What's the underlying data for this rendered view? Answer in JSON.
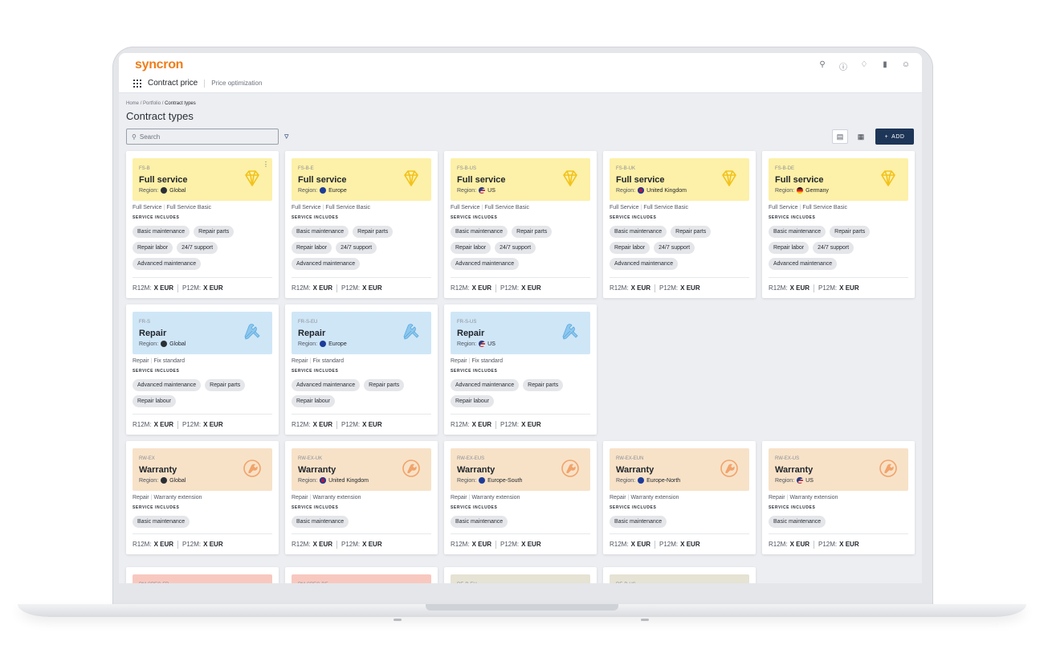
{
  "app": {
    "logo": "syncron",
    "nav_main": "Contract price",
    "nav_sub": "Price optimization",
    "icons": [
      "search-icon",
      "help-icon",
      "bell-icon",
      "analytics-icon",
      "user-icon"
    ]
  },
  "breadcrumb": {
    "home": "Home",
    "sep1": "/",
    "portfolio": "Portfolio",
    "sep2": "/",
    "current": "Contract types"
  },
  "page_title": "Contract types",
  "search": {
    "placeholder": "Search"
  },
  "toolbar": {
    "add_label": "ADD"
  },
  "labels": {
    "service_includes": "SERVICE INCLUDES",
    "region": "Region:",
    "r12m": "R12M:",
    "p12m": "P12M:"
  },
  "cards": [
    {
      "code": "FS-B",
      "title": "Full service",
      "region": "Global",
      "tag1": "Full Service",
      "tag2": "Full Service Basic",
      "chips": [
        "Basic maintenance",
        "Repair parts",
        "Repair labor",
        "24/7 support",
        "Advanced maintenance"
      ],
      "r12m": "X EUR",
      "p12m": "X EUR"
    },
    {
      "code": "FS-B-E",
      "title": "Full service",
      "region": "Europe",
      "tag1": "Full Service",
      "tag2": "Full Service Basic",
      "chips": [
        "Basic maintenance",
        "Repair parts",
        "Repair labor",
        "24/7 support",
        "Advanced maintenance"
      ],
      "r12m": "X EUR",
      "p12m": "X EUR"
    },
    {
      "code": "FS-B-US",
      "title": "Full service",
      "region": "US",
      "tag1": "Full Service",
      "tag2": "Full Service Basic",
      "chips": [
        "Basic maintenance",
        "Repair parts",
        "Repair labor",
        "24/7 support",
        "Advanced maintenance"
      ],
      "r12m": "X EUR",
      "p12m": "X EUR"
    },
    {
      "code": "FS-B-UK",
      "title": "Full service",
      "region": "United Kingdom",
      "tag1": "Full Service",
      "tag2": "Full Service Basic",
      "chips": [
        "Basic maintenance",
        "Repair parts",
        "Repair labor",
        "24/7 support",
        "Advanced maintenance"
      ],
      "r12m": "X EUR",
      "p12m": "X EUR"
    },
    {
      "code": "FS-B-DE",
      "title": "Full service",
      "region": "Germany",
      "tag1": "Full Service",
      "tag2": "Full Service Basic",
      "chips": [
        "Basic maintenance",
        "Repair parts",
        "Repair labor",
        "24/7 support",
        "Advanced maintenance"
      ],
      "r12m": "X EUR",
      "p12m": "X EUR"
    },
    {
      "code": "FR-S",
      "title": "Repair",
      "region": "Global",
      "tag1": "Repair",
      "tag2": "Fix standard",
      "chips": [
        "Advanced maintenance",
        "Repair parts",
        "Repair labour"
      ],
      "r12m": "X EUR",
      "p12m": "X EUR"
    },
    {
      "code": "FR-S-EU",
      "title": "Repair",
      "region": "Europe",
      "tag1": "Repair",
      "tag2": "Fix standard",
      "chips": [
        "Advanced maintenance",
        "Repair parts",
        "Repair labour"
      ],
      "r12m": "X EUR",
      "p12m": "X EUR"
    },
    {
      "code": "FR-S-US",
      "title": "Repair",
      "region": "US",
      "tag1": "Repair",
      "tag2": "Fix standard",
      "chips": [
        "Advanced maintenance",
        "Repair parts",
        "Repair labour"
      ],
      "r12m": "X EUR",
      "p12m": "X EUR"
    },
    {
      "code": "RW-EX",
      "title": "Warranty",
      "region": "Global",
      "tag1": "Repair",
      "tag2": "Warranty extension",
      "chips": [
        "Basic maintenance"
      ],
      "r12m": "X EUR",
      "p12m": "X EUR"
    },
    {
      "code": "RW-EX-UK",
      "title": "Warranty",
      "region": "United Kingdom",
      "tag1": "Repair",
      "tag2": "Warranty extension",
      "chips": [
        "Basic maintenance"
      ],
      "r12m": "X EUR",
      "p12m": "X EUR"
    },
    {
      "code": "RW-EX-EUS",
      "title": "Warranty",
      "region": "Europe-South",
      "tag1": "Repair",
      "tag2": "Warranty extension",
      "chips": [
        "Basic maintenance"
      ],
      "r12m": "X EUR",
      "p12m": "X EUR"
    },
    {
      "code": "RW-EX-EUN",
      "title": "Warranty",
      "region": "Europe-North",
      "tag1": "Repair",
      "tag2": "Warranty extension",
      "chips": [
        "Basic maintenance"
      ],
      "r12m": "X EUR",
      "p12m": "X EUR"
    },
    {
      "code": "RW-EX-US",
      "title": "Warranty",
      "region": "US",
      "tag1": "Repair",
      "tag2": "Warranty extension",
      "chips": [
        "Basic maintenance"
      ],
      "r12m": "X EUR",
      "p12m": "X EUR"
    },
    {
      "code": "PM-SPEC-FR"
    },
    {
      "code": "PM-SPEC-DE"
    },
    {
      "code": "RE-P-EU"
    },
    {
      "code": "RE-P-US"
    }
  ]
}
